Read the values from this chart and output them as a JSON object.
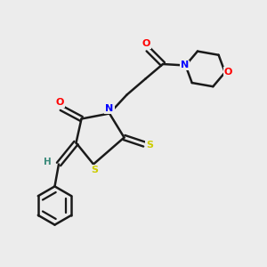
{
  "bg_color": "#ececec",
  "bond_color": "#1a1a1a",
  "N_color": "#0000ff",
  "O_color": "#ff0000",
  "S_color": "#cccc00",
  "H_color": "#3a8a7a",
  "figsize": [
    3.0,
    3.0
  ],
  "dpi": 100,
  "xlim": [
    0,
    10
  ],
  "ylim": [
    0,
    10
  ]
}
